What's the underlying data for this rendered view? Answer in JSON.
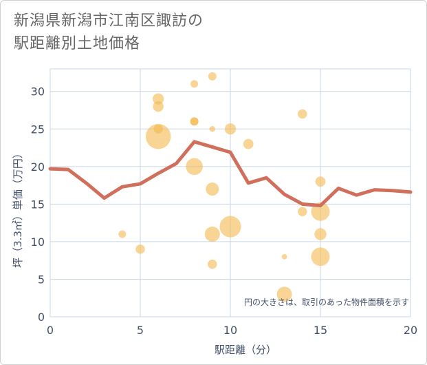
{
  "title_lines": [
    "新潟県新潟市江南区諏訪の",
    "駅距離別土地価格"
  ],
  "colors": {
    "bubble_fill": "#f3b94e",
    "line": "#d0705c",
    "grid": "#c9d6e6",
    "axis_text": "#44506a",
    "title_text": "#666666"
  },
  "chart_data": {
    "type": "scatter",
    "title": "新潟県新潟市江南区諏訪の駅距離別土地価格",
    "xlabel": "駅距離（分）",
    "ylabel": "坪（3.3㎡）単価（万円）",
    "xlim": [
      0,
      20
    ],
    "ylim": [
      0,
      33
    ],
    "x_ticks": [
      "0",
      "5",
      "10",
      "15",
      "20"
    ],
    "y_ticks": [
      "0",
      "5",
      "10",
      "15",
      "20",
      "25",
      "30"
    ],
    "grid": true,
    "note": "円の大きさは、取引のあった物件面積を示す",
    "bubbles": [
      {
        "x": 4,
        "y": 11,
        "size": 1
      },
      {
        "x": 5,
        "y": 9,
        "size": 1.5
      },
      {
        "x": 6,
        "y": 24,
        "size": 11
      },
      {
        "x": 6,
        "y": 25,
        "size": 1.5
      },
      {
        "x": 6,
        "y": 28,
        "size": 2
      },
      {
        "x": 6,
        "y": 29,
        "size": 2.2
      },
      {
        "x": 8,
        "y": 31,
        "size": 1
      },
      {
        "x": 8,
        "y": 26,
        "size": 1.2
      },
      {
        "x": 8,
        "y": 26,
        "size": 1.2
      },
      {
        "x": 8,
        "y": 20,
        "size": 5
      },
      {
        "x": 9,
        "y": 32,
        "size": 1.2
      },
      {
        "x": 9,
        "y": 25,
        "size": 0.6
      },
      {
        "x": 9,
        "y": 17,
        "size": 3
      },
      {
        "x": 9,
        "y": 11,
        "size": 4
      },
      {
        "x": 9,
        "y": 7,
        "size": 1.5
      },
      {
        "x": 10,
        "y": 25,
        "size": 2.2
      },
      {
        "x": 10,
        "y": 12,
        "size": 8
      },
      {
        "x": 11,
        "y": 23,
        "size": 1.8
      },
      {
        "x": 13,
        "y": 8,
        "size": 0.5
      },
      {
        "x": 13,
        "y": 3,
        "size": 4
      },
      {
        "x": 14,
        "y": 27,
        "size": 1.5
      },
      {
        "x": 14,
        "y": 14,
        "size": 1.5
      },
      {
        "x": 15,
        "y": 18,
        "size": 1.8
      },
      {
        "x": 15,
        "y": 14,
        "size": 6
      },
      {
        "x": 15,
        "y": 11,
        "size": 2.5
      },
      {
        "x": 15,
        "y": 8,
        "size": 6
      }
    ],
    "line": {
      "x": [
        0,
        1,
        2,
        3,
        4,
        5,
        6,
        7,
        8,
        9,
        10,
        11,
        12,
        13,
        14,
        15,
        16,
        17,
        18,
        19,
        20
      ],
      "y": [
        19.7,
        19.6,
        17.8,
        15.8,
        17.3,
        17.7,
        19.1,
        20.4,
        23.3,
        22.6,
        21.9,
        17.8,
        18.5,
        16.3,
        15.0,
        14.8,
        17.1,
        16.2,
        16.9,
        16.8,
        16.6
      ]
    }
  }
}
